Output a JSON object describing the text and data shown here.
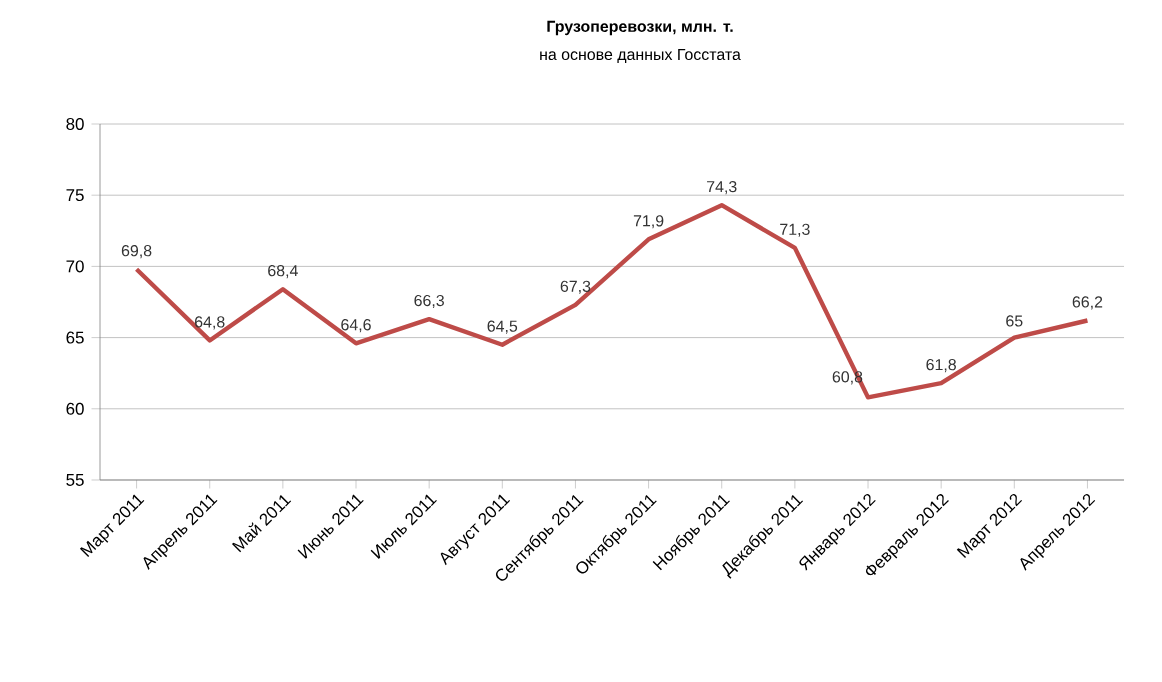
{
  "chart_data": {
    "type": "line",
    "title": "Грузоперевозки, млн. т.",
    "subtitle": "на основе данных Госстата",
    "categories": [
      "Март 2011",
      "Апрель 2011",
      "Май 2011",
      "Июнь 2011",
      "Июль 2011",
      "Август 2011",
      "Сентябрь 2011",
      "Октябрь 2011",
      "Ноябрь 2011",
      "Декабрь 2011",
      "Январь 2012",
      "Февраль 2012",
      "Март 2012",
      "Апрель 2012"
    ],
    "values": [
      69.8,
      64.8,
      68.4,
      64.6,
      66.3,
      64.5,
      67.3,
      71.9,
      74.3,
      71.3,
      60.8,
      61.8,
      65,
      66.2
    ],
    "value_labels": [
      "69,8",
      "64,8",
      "68,4",
      "64,6",
      "66,3",
      "64,5",
      "67,3",
      "71,9",
      "74,3",
      "71,3",
      "60,8",
      "61,8",
      "65",
      "66,2"
    ],
    "color": "#be4b48",
    "ylim": [
      55,
      80
    ],
    "yticks": [
      55,
      60,
      65,
      70,
      75,
      80
    ],
    "grid": "y",
    "marker": "none",
    "line_style": "solid"
  }
}
